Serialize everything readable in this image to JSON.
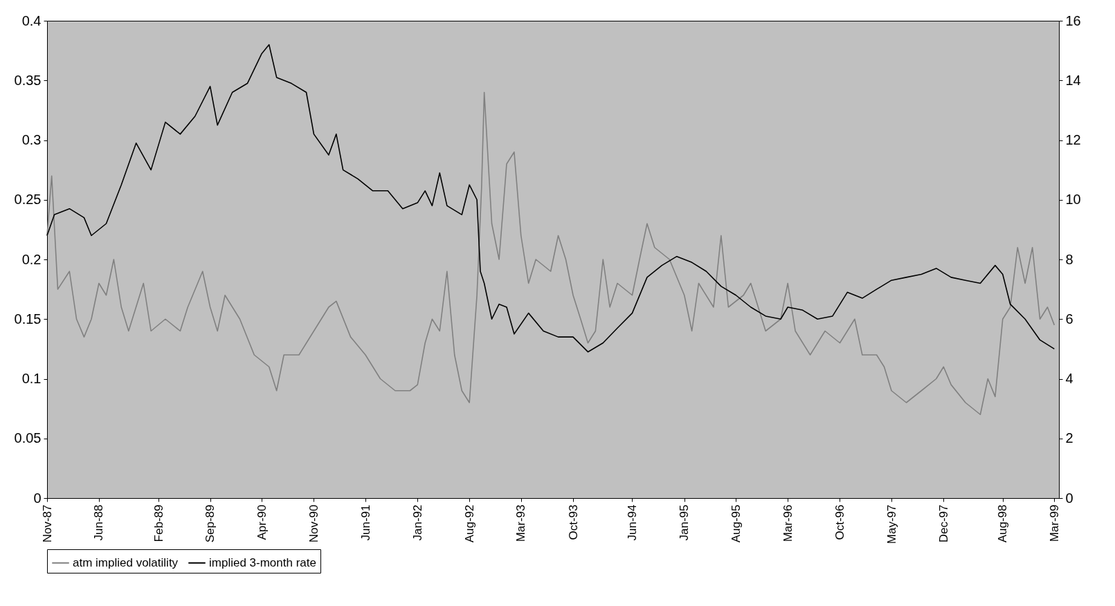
{
  "chart_data": {
    "type": "line",
    "legend": "bottom",
    "grid": false,
    "xlim": [
      "1987-11-01",
      "1999-03-20"
    ],
    "xticks": [
      {
        "value": "1987-11",
        "label": "Nov-87"
      },
      {
        "value": "1988-06",
        "label": "Jun-88"
      },
      {
        "value": "1989-02",
        "label": "Feb-89"
      },
      {
        "value": "1989-09",
        "label": "Sep-89"
      },
      {
        "value": "1990-04",
        "label": "Apr-90"
      },
      {
        "value": "1990-11",
        "label": "Nov-90"
      },
      {
        "value": "1991-06",
        "label": "Jun-91"
      },
      {
        "value": "1992-01",
        "label": "Jan-92"
      },
      {
        "value": "1992-08",
        "label": "Aug-92"
      },
      {
        "value": "1993-03",
        "label": "Mar-93"
      },
      {
        "value": "1993-10",
        "label": "Oct-93"
      },
      {
        "value": "1994-06",
        "label": "Jun-94"
      },
      {
        "value": "1995-01",
        "label": "Jan-95"
      },
      {
        "value": "1995-08",
        "label": "Aug-95"
      },
      {
        "value": "1996-03",
        "label": "Mar-96"
      },
      {
        "value": "1996-10",
        "label": "Oct-96"
      },
      {
        "value": "1997-05",
        "label": "May-97"
      },
      {
        "value": "1997-12",
        "label": "Dec-97"
      },
      {
        "value": "1998-08",
        "label": "Aug-98"
      },
      {
        "value": "1999-03",
        "label": "Mar-99"
      }
    ],
    "ylim": [
      0,
      0.4
    ],
    "yticks": [
      0,
      0.05,
      0.1,
      0.15,
      0.2,
      0.25,
      0.3,
      0.35,
      0.4
    ],
    "y2lim": [
      0,
      16
    ],
    "y2ticks": [
      0,
      2,
      4,
      6,
      8,
      10,
      12,
      14,
      16
    ],
    "series": [
      {
        "name": "atm implied volatility",
        "color": "#808080",
        "x": [
          "1987-11-01",
          "1987-11-20",
          "1987-12-15",
          "1988-02",
          "1988-03",
          "1988-04",
          "1988-05",
          "1988-06",
          "1988-07",
          "1988-08",
          "1988-09",
          "1988-10",
          "1988-12",
          "1989-01",
          "1989-03",
          "1989-05",
          "1989-06",
          "1989-08",
          "1989-09",
          "1989-10",
          "1989-11",
          "1990-01",
          "1990-03",
          "1990-05",
          "1990-06",
          "1990-07",
          "1990-09",
          "1990-11",
          "1991-01",
          "1991-02",
          "1991-04",
          "1991-06",
          "1991-08",
          "1991-10",
          "1991-12",
          "1992-01",
          "1992-02",
          "1992-03",
          "1992-04",
          "1992-05",
          "1992-06",
          "1992-07",
          "1992-08",
          "1992-09",
          "1992-09-20",
          "1992-10",
          "1992-11",
          "1992-12",
          "1993-01",
          "1993-02",
          "1993-03",
          "1993-04",
          "1993-05",
          "1993-07",
          "1993-08",
          "1993-09",
          "1993-10",
          "1993-11",
          "1993-12",
          "1994-01",
          "1994-02",
          "1994-03",
          "1994-04",
          "1994-06",
          "1994-07",
          "1994-08",
          "1994-09",
          "1994-11",
          "1995-01",
          "1995-02",
          "1995-03",
          "1995-05",
          "1995-06",
          "1995-07",
          "1995-09",
          "1995-10",
          "1995-12",
          "1996-02",
          "1996-03",
          "1996-04",
          "1996-06",
          "1996-08",
          "1996-10",
          "1996-12",
          "1997-01",
          "1997-03",
          "1997-04",
          "1997-05",
          "1997-07",
          "1997-09",
          "1997-11",
          "1997-12",
          "1998-01",
          "1998-03",
          "1998-05",
          "1998-06",
          "1998-07",
          "1998-08",
          "1998-09",
          "1998-10",
          "1998-11",
          "1998-12",
          "1999-01",
          "1999-02",
          "1999-03"
        ],
        "values": [
          0.22,
          0.27,
          0.175,
          0.19,
          0.15,
          0.135,
          0.15,
          0.18,
          0.17,
          0.2,
          0.16,
          0.14,
          0.18,
          0.14,
          0.15,
          0.14,
          0.16,
          0.19,
          0.16,
          0.14,
          0.17,
          0.15,
          0.12,
          0.11,
          0.09,
          0.12,
          0.12,
          0.14,
          0.16,
          0.165,
          0.135,
          0.12,
          0.1,
          0.09,
          0.09,
          0.095,
          0.13,
          0.15,
          0.14,
          0.19,
          0.12,
          0.09,
          0.08,
          0.17,
          0.26,
          0.34,
          0.23,
          0.2,
          0.28,
          0.29,
          0.22,
          0.18,
          0.2,
          0.19,
          0.22,
          0.2,
          0.17,
          0.15,
          0.13,
          0.14,
          0.2,
          0.16,
          0.18,
          0.17,
          0.2,
          0.23,
          0.21,
          0.2,
          0.17,
          0.14,
          0.18,
          0.16,
          0.22,
          0.16,
          0.17,
          0.18,
          0.14,
          0.15,
          0.18,
          0.14,
          0.12,
          0.14,
          0.13,
          0.15,
          0.12,
          0.12,
          0.11,
          0.09,
          0.08,
          0.09,
          0.1,
          0.11,
          0.095,
          0.08,
          0.07,
          0.1,
          0.085,
          0.15,
          0.16,
          0.21,
          0.18,
          0.21,
          0.15,
          0.16,
          0.145
        ]
      },
      {
        "name": "implied 3-month rate",
        "color": "#000000",
        "axis": "y2",
        "x": [
          "1987-11-01",
          "1987-12",
          "1988-02",
          "1988-04",
          "1988-05",
          "1988-07",
          "1988-09",
          "1988-11",
          "1989-01",
          "1989-03",
          "1989-05",
          "1989-07",
          "1989-09",
          "1989-10",
          "1989-12",
          "1990-02",
          "1990-04",
          "1990-05",
          "1990-06",
          "1990-08",
          "1990-10",
          "1990-11",
          "1991-01",
          "1991-02",
          "1991-03",
          "1991-05",
          "1991-07",
          "1991-09",
          "1991-11",
          "1992-01",
          "1992-02",
          "1992-03",
          "1992-04",
          "1992-05",
          "1992-07",
          "1992-08",
          "1992-09",
          "1992-09-15",
          "1992-10",
          "1992-11",
          "1992-12",
          "1993-01",
          "1993-02",
          "1993-04",
          "1993-06",
          "1993-08",
          "1993-10",
          "1993-12",
          "1994-02",
          "1994-04",
          "1994-06",
          "1994-08",
          "1994-10",
          "1994-12",
          "1995-02",
          "1995-04",
          "1995-06",
          "1995-08",
          "1995-10",
          "1995-12",
          "1996-02",
          "1996-03",
          "1996-05",
          "1996-07",
          "1996-09",
          "1996-11",
          "1997-01",
          "1997-03",
          "1997-05",
          "1997-07",
          "1997-09",
          "1997-11",
          "1998-01",
          "1998-03",
          "1998-05",
          "1998-07",
          "1998-08",
          "1998-09",
          "1998-11",
          "1999-01",
          "1999-03"
        ],
        "values": [
          8.8,
          9.5,
          9.7,
          9.4,
          8.8,
          9.2,
          10.5,
          11.9,
          11.0,
          12.6,
          12.2,
          12.8,
          13.8,
          12.5,
          13.6,
          13.9,
          14.9,
          15.2,
          14.1,
          13.9,
          13.6,
          12.2,
          11.5,
          12.2,
          11.0,
          10.7,
          10.3,
          10.3,
          9.7,
          9.9,
          10.3,
          9.8,
          10.9,
          9.8,
          9.5,
          10.5,
          10.0,
          7.6,
          7.2,
          6.0,
          6.5,
          6.4,
          5.5,
          6.2,
          5.6,
          5.4,
          5.4,
          4.9,
          5.2,
          5.7,
          6.2,
          7.4,
          7.8,
          8.1,
          7.9,
          7.6,
          7.1,
          6.8,
          6.4,
          6.1,
          6.0,
          6.4,
          6.3,
          6.0,
          6.1,
          6.9,
          6.7,
          7.0,
          7.3,
          7.4,
          7.5,
          7.7,
          7.4,
          7.3,
          7.2,
          7.8,
          7.5,
          6.5,
          6.0,
          5.3,
          5.0
        ]
      }
    ]
  }
}
